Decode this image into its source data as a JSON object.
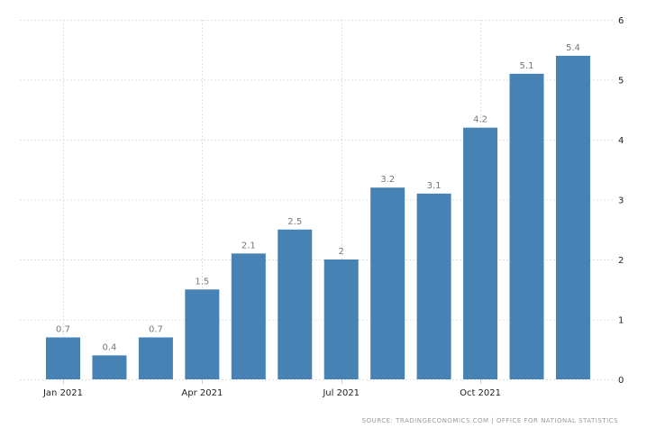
{
  "chart_data": {
    "type": "bar",
    "categories": [
      "Jan 2021",
      "Feb 2021",
      "Mar 2021",
      "Apr 2021",
      "May 2021",
      "Jun 2021",
      "Jul 2021",
      "Aug 2021",
      "Sep 2021",
      "Oct 2021",
      "Nov 2021",
      "Dec 2021"
    ],
    "values": [
      0.7,
      0.4,
      0.7,
      1.5,
      2.1,
      2.5,
      2,
      3.2,
      3.1,
      4.2,
      5.1,
      5.4
    ],
    "x_tick_labels": [
      "Jan 2021",
      "Apr 2021",
      "Jul 2021",
      "Oct 2021"
    ],
    "x_tick_indices": [
      0,
      3,
      6,
      9
    ],
    "y_ticks": [
      0,
      1,
      2,
      3,
      4,
      5,
      6
    ],
    "ylim": [
      0,
      6
    ],
    "y_axis_side": "right",
    "grid": true,
    "bar_color": "#4682b4",
    "source": "SOURCE: TRADINGECONOMICS.COM  |  OFFICE FOR NATIONAL STATISTICS"
  }
}
